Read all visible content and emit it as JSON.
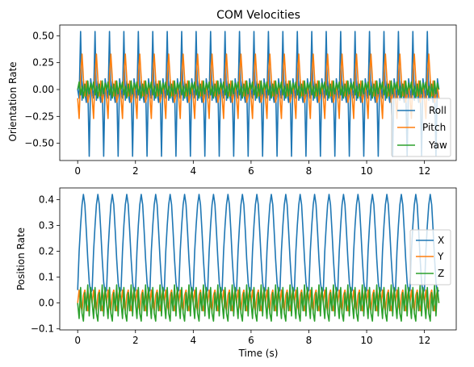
{
  "chart_data": [
    {
      "type": "line",
      "title": "COM Velocities",
      "xlabel": "",
      "ylabel": "Orientation Rate",
      "xlim": [
        -0.62,
        13.1
      ],
      "ylim": [
        -0.66,
        0.6
      ],
      "xticks": [
        0,
        2,
        4,
        6,
        8,
        10,
        12
      ],
      "xtick_labels": [
        "0",
        "2",
        "4",
        "6",
        "8",
        "10",
        "12"
      ],
      "yticks": [
        0.5,
        0.25,
        0.0,
        -0.25,
        -0.5
      ],
      "ytick_labels": [
        "0.50",
        "0.25",
        "0.00",
        "−0.25",
        "−0.50"
      ],
      "grid": false,
      "legend_position": "lower-right",
      "x": [
        0.0,
        0.05,
        0.1,
        0.15,
        0.2,
        0.25,
        0.3,
        0.35,
        0.4,
        0.45,
        0.5
      ],
      "period": 0.5,
      "repeat_until": 12.5,
      "series": [
        {
          "name": "Roll",
          "color": "#1f77b4",
          "values": [
            0.0,
            -0.08,
            0.54,
            -0.1,
            0.08,
            -0.04,
            -0.12,
            0.05,
            -0.62,
            0.1,
            0.0
          ]
        },
        {
          "name": "Pitch",
          "color": "#ff7f0e",
          "values": [
            -0.08,
            -0.27,
            0.12,
            0.33,
            0.1,
            -0.06,
            0.08,
            -0.12,
            -0.05,
            0.04,
            -0.08
          ]
        },
        {
          "name": "Yaw",
          "color": "#2ca02c",
          "values": [
            0.0,
            0.07,
            -0.05,
            0.03,
            -0.08,
            0.05,
            -0.06,
            0.08,
            -0.04,
            0.06,
            0.0
          ]
        }
      ]
    },
    {
      "type": "line",
      "title": "",
      "xlabel": "Time (s)",
      "ylabel": "Position Rate",
      "xlim": [
        -0.62,
        13.1
      ],
      "ylim": [
        -0.104,
        0.445
      ],
      "xticks": [
        0,
        2,
        4,
        6,
        8,
        10,
        12
      ],
      "xtick_labels": [
        "0",
        "2",
        "4",
        "6",
        "8",
        "10",
        "12"
      ],
      "yticks": [
        0.4,
        0.3,
        0.2,
        0.1,
        0.0,
        -0.1
      ],
      "ytick_labels": [
        "0.4",
        "0.3",
        "0.2",
        "0.1",
        "0.0",
        "−0.1"
      ],
      "grid": false,
      "legend_position": "center-right",
      "x": [
        0.0,
        0.05,
        0.1,
        0.15,
        0.2,
        0.25,
        0.3,
        0.35,
        0.4,
        0.45,
        0.5
      ],
      "period": 0.5,
      "repeat_until": 12.5,
      "series": [
        {
          "name": "X",
          "color": "#1f77b4",
          "values": [
            0.05,
            0.2,
            0.3,
            0.38,
            0.42,
            0.38,
            0.28,
            0.17,
            0.08,
            0.04,
            0.05
          ]
        },
        {
          "name": "Y",
          "color": "#ff7f0e",
          "values": [
            0.0,
            0.05,
            -0.01,
            -0.03,
            0.03,
            0.05,
            0.0,
            -0.03,
            0.02,
            0.05,
            0.0
          ]
        },
        {
          "name": "Z",
          "color": "#2ca02c",
          "values": [
            0.0,
            -0.06,
            0.06,
            -0.04,
            -0.07,
            0.04,
            -0.03,
            0.07,
            -0.05,
            0.06,
            0.0
          ]
        }
      ]
    }
  ]
}
